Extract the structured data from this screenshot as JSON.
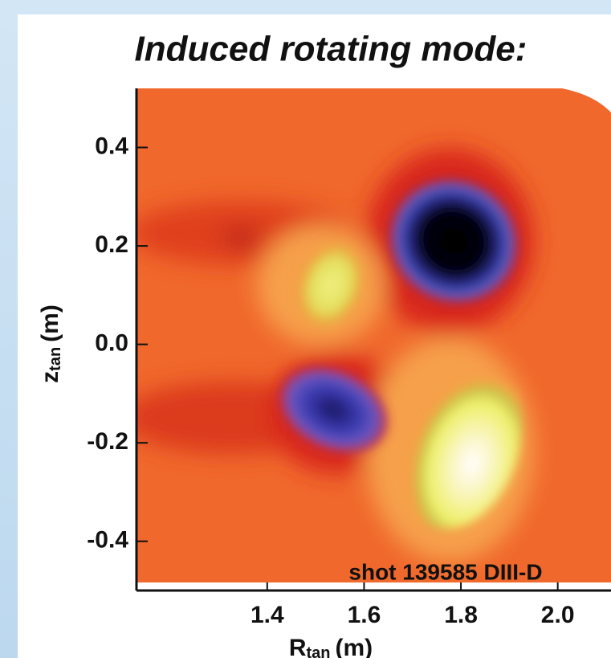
{
  "chart_data": {
    "type": "image",
    "title": "Induced rotating mode:",
    "xlabel": {
      "symbol": "R",
      "subscript": "tan",
      "unit": "(m)"
    },
    "ylabel": {
      "symbol": "z",
      "subscript": "tan",
      "unit": "(m)"
    },
    "annotation": "shot 139585 DIII-D",
    "xlim": [
      1.13,
      2.11
    ],
    "ylim": [
      -0.5,
      0.52
    ],
    "xticks": [
      1.4,
      1.6,
      1.8,
      {
        "value": 2,
        "label": "2.0"
      }
    ],
    "yticks": [
      -0.4,
      -0.2,
      {
        "value": 0,
        "label": "0.0"
      },
      0.2,
      0.4
    ]
  }
}
